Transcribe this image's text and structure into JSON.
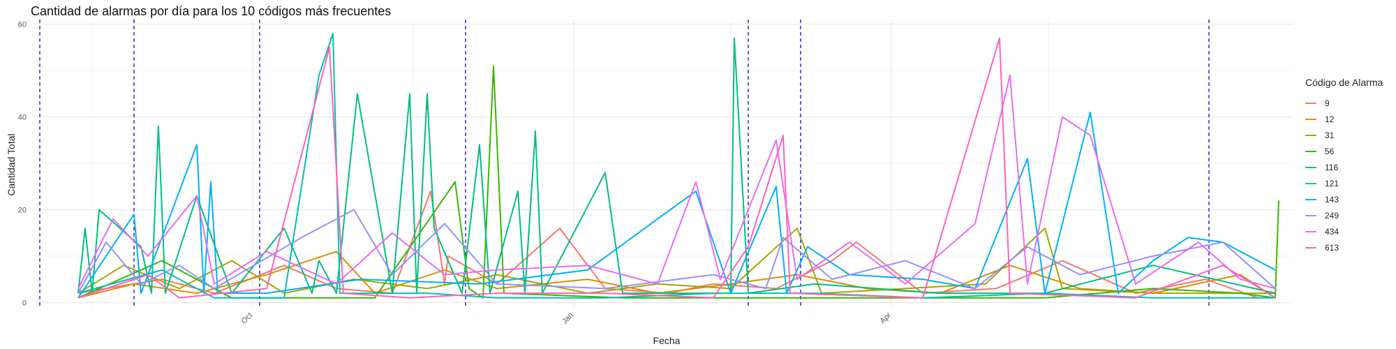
{
  "chart_data": {
    "type": "line",
    "title": "Cantidad de alarmas por día para los 10 códigos más frecuentes",
    "xlabel": "Fecha",
    "ylabel": "Cantidad Total",
    "x_range": [
      "2023-07-31",
      "2024-07-25"
    ],
    "ylim": [
      -1,
      61
    ],
    "y_ticks": [
      0,
      20,
      40,
      60
    ],
    "x_ticks": [
      {
        "date": "2023-10-01",
        "label": "Oct"
      },
      {
        "date": "2024-01-01",
        "label": "Jan"
      },
      {
        "date": "2024-04-01",
        "label": "Apr"
      }
    ],
    "vlines": [
      "2023-08-01",
      "2023-08-28",
      "2023-10-03",
      "2023-12-01",
      "2024-02-20",
      "2024-03-06",
      "2024-07-01"
    ],
    "grid": true,
    "legend": {
      "title": "Código de Alarma",
      "position": "right"
    },
    "series": [
      {
        "name": "9",
        "color": "#F8766D",
        "points": [
          [
            "2023-08-12",
            2
          ],
          [
            "2023-08-20",
            3
          ],
          [
            "2023-09-05",
            5
          ],
          [
            "2023-09-20",
            2
          ],
          [
            "2023-10-10",
            8
          ],
          [
            "2023-10-25",
            3
          ],
          [
            "2023-11-10",
            2
          ],
          [
            "2023-11-25",
            4
          ],
          [
            "2023-11-21",
            24
          ],
          [
            "2023-11-26",
            10
          ],
          [
            "2023-12-10",
            4
          ],
          [
            "2023-12-28",
            16
          ],
          [
            "2024-01-10",
            3
          ],
          [
            "2024-01-28",
            2
          ],
          [
            "2024-02-10",
            4
          ],
          [
            "2024-02-28",
            3
          ],
          [
            "2024-03-15",
            9
          ],
          [
            "2024-03-22",
            13
          ],
          [
            "2024-04-10",
            2
          ],
          [
            "2024-05-01",
            3
          ],
          [
            "2024-05-20",
            9
          ],
          [
            "2024-06-10",
            2
          ],
          [
            "2024-06-30",
            5
          ],
          [
            "2024-07-15",
            1
          ]
        ]
      },
      {
        "name": "12",
        "color": "#D89000",
        "points": [
          [
            "2023-08-12",
            1
          ],
          [
            "2023-08-28",
            4
          ],
          [
            "2023-09-15",
            2
          ],
          [
            "2023-10-05",
            6
          ],
          [
            "2023-10-25",
            11
          ],
          [
            "2023-11-05",
            2
          ],
          [
            "2023-11-25",
            7
          ],
          [
            "2023-12-10",
            3
          ],
          [
            "2024-01-05",
            5
          ],
          [
            "2024-01-25",
            2
          ],
          [
            "2024-02-15",
            4
          ],
          [
            "2024-03-05",
            6
          ],
          [
            "2024-03-25",
            3
          ],
          [
            "2024-04-15",
            2
          ],
          [
            "2024-05-05",
            8
          ],
          [
            "2024-05-25",
            3
          ],
          [
            "2024-06-15",
            2
          ],
          [
            "2024-07-10",
            6
          ],
          [
            "2024-07-20",
            1
          ]
        ]
      },
      {
        "name": "31",
        "color": "#A3A500",
        "points": [
          [
            "2023-08-12",
            2
          ],
          [
            "2023-08-25",
            8
          ],
          [
            "2023-09-10",
            3
          ],
          [
            "2023-09-25",
            9
          ],
          [
            "2023-10-10",
            2
          ],
          [
            "2023-10-30",
            5
          ],
          [
            "2023-11-20",
            3
          ],
          [
            "2023-12-10",
            6
          ],
          [
            "2024-01-05",
            2
          ],
          [
            "2024-01-25",
            4
          ],
          [
            "2024-02-15",
            3
          ],
          [
            "2024-03-05",
            16
          ],
          [
            "2024-03-12",
            2
          ],
          [
            "2024-04-05",
            3
          ],
          [
            "2024-04-28",
            4
          ],
          [
            "2024-05-15",
            16
          ],
          [
            "2024-05-20",
            3
          ],
          [
            "2024-06-15",
            2
          ],
          [
            "2024-07-20",
            2
          ]
        ]
      },
      {
        "name": "56",
        "color": "#39B600",
        "points": [
          [
            "2023-08-12",
            1
          ],
          [
            "2023-09-05",
            9
          ],
          [
            "2023-09-25",
            1
          ],
          [
            "2023-11-05",
            1
          ],
          [
            "2023-11-28",
            26
          ],
          [
            "2023-12-02",
            3
          ],
          [
            "2023-12-06",
            1
          ],
          [
            "2023-12-09",
            51
          ],
          [
            "2023-12-12",
            2
          ],
          [
            "2024-01-15",
            1
          ],
          [
            "2024-02-20",
            1
          ],
          [
            "2024-03-05",
            1
          ],
          [
            "2024-04-15",
            1
          ],
          [
            "2024-05-15",
            1
          ],
          [
            "2024-06-15",
            3
          ],
          [
            "2024-07-10",
            2
          ],
          [
            "2024-07-20",
            1
          ],
          [
            "2024-07-21",
            22
          ]
        ]
      },
      {
        "name": "116",
        "color": "#00BF7D",
        "points": [
          [
            "2023-08-12",
            2
          ],
          [
            "2023-08-14",
            16
          ],
          [
            "2023-08-16",
            2
          ],
          [
            "2023-08-18",
            20
          ],
          [
            "2023-08-30",
            12
          ],
          [
            "2023-09-02",
            2
          ],
          [
            "2023-09-04",
            38
          ],
          [
            "2023-09-06",
            2
          ],
          [
            "2023-09-15",
            23
          ],
          [
            "2023-09-25",
            2
          ],
          [
            "2023-10-10",
            16
          ],
          [
            "2023-10-18",
            2
          ],
          [
            "2023-10-20",
            9
          ],
          [
            "2023-10-25",
            2
          ],
          [
            "2023-10-31",
            45
          ],
          [
            "2023-11-10",
            2
          ],
          [
            "2023-11-15",
            45
          ],
          [
            "2023-11-17",
            2
          ],
          [
            "2023-11-20",
            45
          ],
          [
            "2023-11-22",
            16
          ],
          [
            "2023-11-30",
            2
          ],
          [
            "2023-12-05",
            34
          ],
          [
            "2023-12-08",
            2
          ],
          [
            "2023-12-16",
            24
          ],
          [
            "2023-12-18",
            2
          ],
          [
            "2023-12-21",
            37
          ],
          [
            "2023-12-23",
            2
          ],
          [
            "2024-01-10",
            28
          ],
          [
            "2024-01-15",
            2
          ],
          [
            "2024-02-15",
            2
          ],
          [
            "2024-02-16",
            57
          ],
          [
            "2024-02-20",
            2
          ],
          [
            "2024-03-10",
            4
          ],
          [
            "2024-04-15",
            2
          ],
          [
            "2024-05-15",
            2
          ],
          [
            "2024-06-15",
            8
          ],
          [
            "2024-07-20",
            2
          ]
        ]
      },
      {
        "name": "121",
        "color": "#00C0AF",
        "points": [
          [
            "2023-08-12",
            2
          ],
          [
            "2023-09-05",
            7
          ],
          [
            "2023-09-20",
            1
          ],
          [
            "2023-10-10",
            1
          ],
          [
            "2023-10-20",
            49
          ],
          [
            "2023-10-24",
            58
          ],
          [
            "2023-10-26",
            2
          ],
          [
            "2023-11-20",
            2
          ],
          [
            "2023-12-10",
            1
          ],
          [
            "2024-01-10",
            1
          ],
          [
            "2024-02-10",
            2
          ],
          [
            "2024-02-20",
            2
          ],
          [
            "2024-03-10",
            2
          ],
          [
            "2024-04-10",
            1
          ],
          [
            "2024-05-15",
            2
          ],
          [
            "2024-06-15",
            1
          ],
          [
            "2024-07-20",
            1
          ]
        ]
      },
      {
        "name": "143",
        "color": "#00B0F6",
        "points": [
          [
            "2023-08-12",
            1
          ],
          [
            "2023-08-28",
            19
          ],
          [
            "2023-08-30",
            2
          ],
          [
            "2023-09-15",
            34
          ],
          [
            "2023-09-17",
            2
          ],
          [
            "2023-09-19",
            26
          ],
          [
            "2023-09-21",
            2
          ],
          [
            "2023-10-05",
            2
          ],
          [
            "2023-11-01",
            5
          ],
          [
            "2023-12-05",
            4
          ],
          [
            "2023-12-15",
            5
          ],
          [
            "2024-01-05",
            7
          ],
          [
            "2024-01-25",
            18
          ],
          [
            "2024-02-05",
            24
          ],
          [
            "2024-02-15",
            2
          ],
          [
            "2024-02-28",
            25
          ],
          [
            "2024-03-02",
            2
          ],
          [
            "2024-03-08",
            12
          ],
          [
            "2024-03-20",
            6
          ],
          [
            "2024-04-10",
            5
          ],
          [
            "2024-04-25",
            3
          ],
          [
            "2024-05-10",
            31
          ],
          [
            "2024-05-15",
            2
          ],
          [
            "2024-05-28",
            41
          ],
          [
            "2024-06-05",
            2
          ],
          [
            "2024-06-15",
            9
          ],
          [
            "2024-06-25",
            14
          ],
          [
            "2024-07-05",
            13
          ],
          [
            "2024-07-20",
            7
          ]
        ]
      },
      {
        "name": "249",
        "color": "#9590FF",
        "points": [
          [
            "2023-08-12",
            2
          ],
          [
            "2023-08-20",
            13
          ],
          [
            "2023-08-30",
            4
          ],
          [
            "2023-09-10",
            8
          ],
          [
            "2023-09-20",
            3
          ],
          [
            "2023-10-15",
            14
          ],
          [
            "2023-10-30",
            20
          ],
          [
            "2023-11-10",
            6
          ],
          [
            "2023-11-25",
            17
          ],
          [
            "2023-12-10",
            4
          ],
          [
            "2024-01-10",
            3
          ],
          [
            "2024-02-10",
            6
          ],
          [
            "2024-02-25",
            3
          ],
          [
            "2024-03-01",
            14
          ],
          [
            "2024-03-15",
            5
          ],
          [
            "2024-04-05",
            9
          ],
          [
            "2024-04-25",
            3
          ],
          [
            "2024-05-10",
            12
          ],
          [
            "2024-05-25",
            6
          ],
          [
            "2024-06-15",
            10
          ],
          [
            "2024-07-05",
            13
          ],
          [
            "2024-07-20",
            3
          ]
        ]
      },
      {
        "name": "434",
        "color": "#E76BF3",
        "points": [
          [
            "2023-08-12",
            3
          ],
          [
            "2023-08-22",
            18
          ],
          [
            "2023-09-01",
            10
          ],
          [
            "2023-09-15",
            23
          ],
          [
            "2023-09-20",
            4
          ],
          [
            "2023-10-05",
            11
          ],
          [
            "2023-10-25",
            4
          ],
          [
            "2023-11-10",
            15
          ],
          [
            "2023-11-25",
            6
          ],
          [
            "2023-12-10",
            7
          ],
          [
            "2024-01-05",
            8
          ],
          [
            "2024-01-25",
            4
          ],
          [
            "2024-02-05",
            26
          ],
          [
            "2024-02-12",
            5
          ],
          [
            "2024-02-28",
            35
          ],
          [
            "2024-03-05",
            5
          ],
          [
            "2024-03-20",
            13
          ],
          [
            "2024-04-05",
            4
          ],
          [
            "2024-04-25",
            17
          ],
          [
            "2024-05-05",
            49
          ],
          [
            "2024-05-10",
            4
          ],
          [
            "2024-05-20",
            40
          ],
          [
            "2024-05-28",
            36
          ],
          [
            "2024-06-10",
            4
          ],
          [
            "2024-06-28",
            13
          ],
          [
            "2024-07-10",
            5
          ],
          [
            "2024-07-20",
            3
          ]
        ]
      },
      {
        "name": "613",
        "color": "#FF62BC",
        "points": [
          [
            "2023-08-12",
            1
          ],
          [
            "2023-09-01",
            6
          ],
          [
            "2023-09-10",
            1
          ],
          [
            "2023-10-05",
            3
          ],
          [
            "2023-10-23",
            55
          ],
          [
            "2023-10-27",
            2
          ],
          [
            "2023-11-15",
            1
          ],
          [
            "2023-12-10",
            2
          ],
          [
            "2024-01-10",
            2
          ],
          [
            "2024-02-10",
            1
          ],
          [
            "2024-02-20",
            12
          ],
          [
            "2024-03-01",
            36
          ],
          [
            "2024-03-03",
            2
          ],
          [
            "2024-04-10",
            1
          ],
          [
            "2024-05-02",
            57
          ],
          [
            "2024-05-05",
            2
          ],
          [
            "2024-06-10",
            1
          ],
          [
            "2024-07-05",
            8
          ],
          [
            "2024-07-20",
            1
          ]
        ]
      }
    ]
  }
}
